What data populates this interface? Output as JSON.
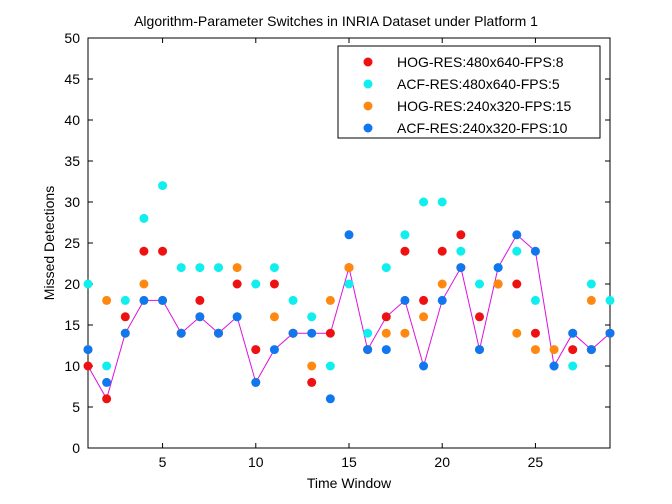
{
  "chart_data": {
    "type": "scatter",
    "title": "Algorithm-Parameter Switches in INRIA Dataset under Platform 1",
    "xlabel": "Time Window",
    "ylabel": "Missed Detections",
    "xlim": [
      1,
      29
    ],
    "ylim": [
      0,
      50
    ],
    "xticks": [
      5,
      10,
      15,
      20,
      25
    ],
    "yticks": [
      0,
      5,
      10,
      15,
      20,
      25,
      30,
      35,
      40,
      45,
      50
    ],
    "grid": false,
    "legend_position": "top-right",
    "x": [
      1,
      2,
      3,
      4,
      5,
      6,
      7,
      8,
      9,
      10,
      11,
      12,
      13,
      14,
      15,
      16,
      17,
      18,
      19,
      20,
      21,
      22,
      23,
      24,
      25,
      26,
      27,
      28,
      29
    ],
    "series": [
      {
        "name": "HOG-RES:480x640-FPS:8",
        "color": "#ee1111",
        "values": [
          10,
          6,
          16,
          24,
          24,
          14,
          18,
          14,
          20,
          12,
          20,
          14,
          8,
          14,
          22,
          12,
          16,
          24,
          18,
          24,
          26,
          16,
          20,
          20,
          14,
          10,
          12,
          12,
          14
        ]
      },
      {
        "name": "ACF-RES:480x640-FPS:5",
        "color": "#11eeee",
        "values": [
          20,
          10,
          18,
          28,
          32,
          22,
          22,
          22,
          16,
          20,
          22,
          18,
          16,
          10,
          20,
          14,
          22,
          26,
          30,
          30,
          24,
          20,
          22,
          24,
          18,
          10,
          10,
          20,
          18
        ]
      },
      {
        "name": "HOG-RES:240x320-FPS:15",
        "color": "#ff8811",
        "values": [
          12,
          18,
          14,
          20,
          18,
          14,
          16,
          14,
          22,
          8,
          16,
          14,
          10,
          18,
          22,
          12,
          14,
          14,
          16,
          20,
          22,
          12,
          20,
          14,
          12,
          12,
          14,
          18,
          14
        ]
      },
      {
        "name": "ACF-RES:240x320-FPS:10",
        "color": "#1177ee",
        "values": [
          12,
          8,
          14,
          18,
          18,
          14,
          16,
          14,
          16,
          8,
          12,
          14,
          14,
          6,
          26,
          12,
          12,
          18,
          10,
          18,
          22,
          12,
          22,
          26,
          24,
          10,
          14,
          12,
          14
        ]
      }
    ],
    "switch_line": {
      "color": "#dd11dd",
      "values": [
        10,
        6,
        14,
        18,
        18,
        14,
        16,
        14,
        16,
        8,
        12,
        14,
        14,
        14,
        22,
        12,
        16,
        18,
        10,
        18,
        22,
        12,
        22,
        26,
        24,
        10,
        14,
        12,
        14
      ]
    }
  }
}
